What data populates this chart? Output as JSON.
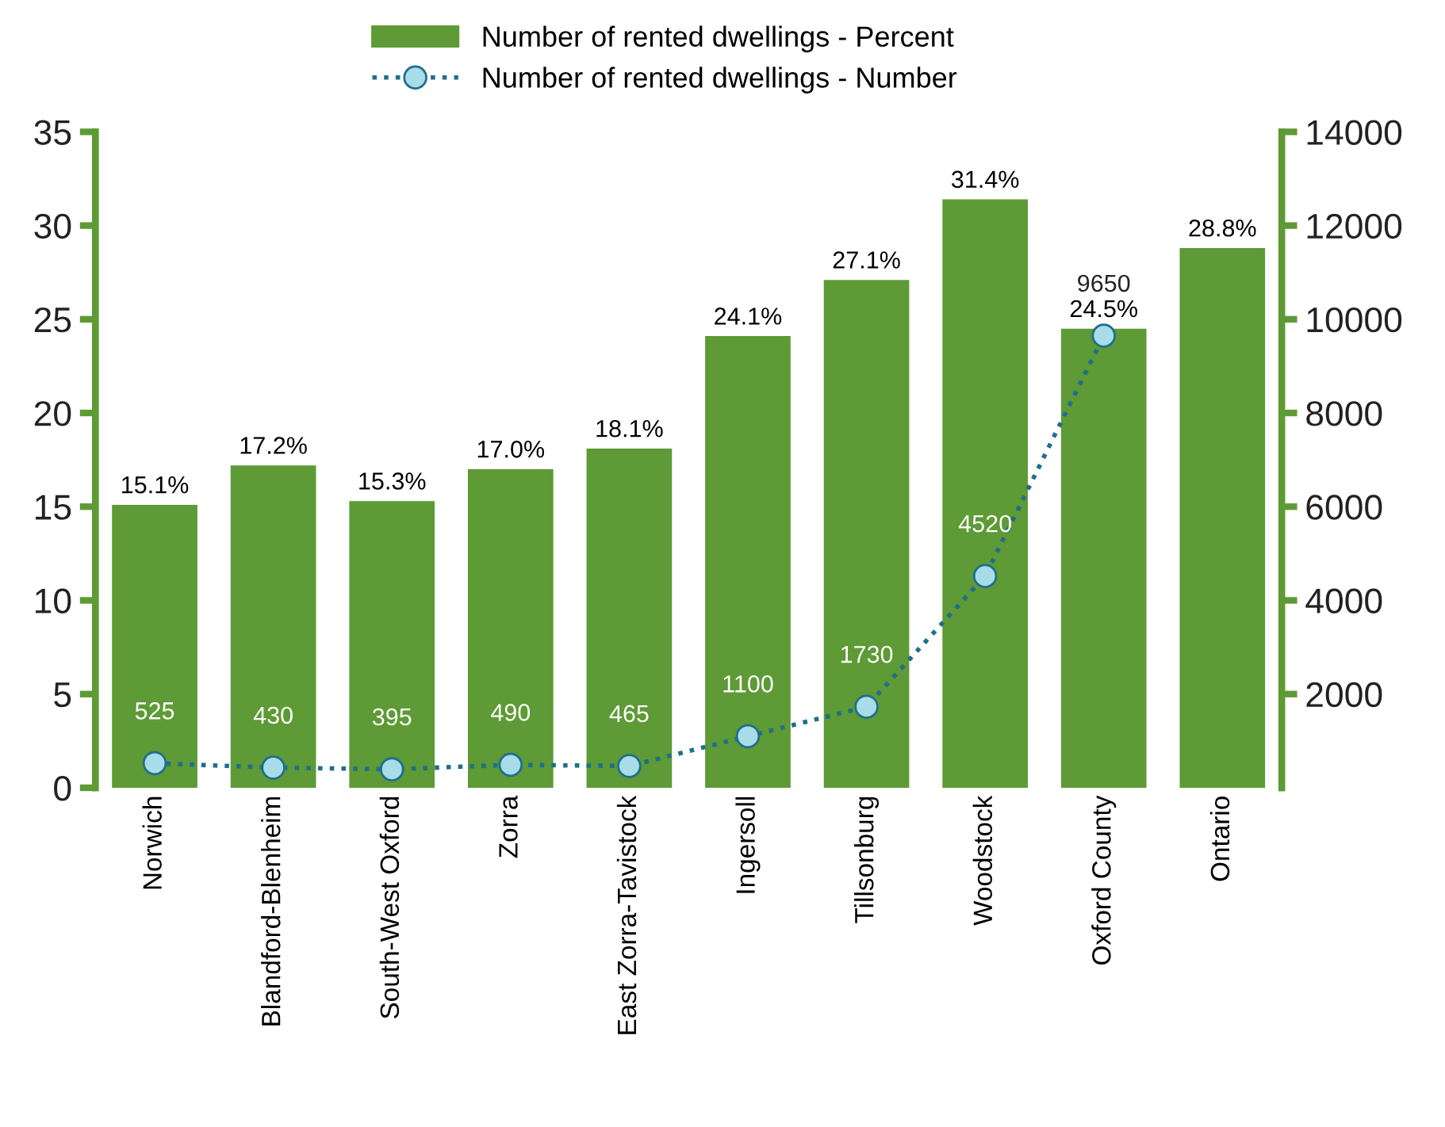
{
  "chart_data": {
    "type": "bar",
    "categories": [
      "Norwich",
      "Blandford-Blenheim",
      "South-West Oxford",
      "Zorra",
      "East Zorra-Tavistock",
      "Ingersoll",
      "Tillsonburg",
      "Woodstock",
      "Oxford County",
      "Ontario"
    ],
    "series": [
      {
        "name": "Number of rented dwellings - Percent",
        "color": "#5e9a35",
        "values": [
          15.1,
          17.2,
          15.3,
          17.0,
          18.1,
          24.1,
          27.1,
          31.4,
          24.5,
          28.8
        ],
        "value_labels": [
          "15.1%",
          "17.2%",
          "15.3%",
          "17.0%",
          "18.1%",
          "24.1%",
          "27.1%",
          "31.4%",
          "24.5%",
          "28.8%"
        ]
      },
      {
        "name": "Number of rented dwellings - Number",
        "type": "line",
        "axis": "y2",
        "color": "#1f6f8b",
        "marker": "circle",
        "line_style": "dotted",
        "values": [
          525,
          430,
          395,
          490,
          465,
          1100,
          1730,
          4520,
          9650,
          null
        ],
        "value_labels": [
          "525",
          "430",
          "395",
          "490",
          "465",
          "1100",
          "1730",
          "4520",
          "9650",
          null
        ]
      }
    ],
    "ylim": [
      0,
      35
    ],
    "yticks": [
      0,
      5,
      10,
      15,
      20,
      25,
      30,
      35
    ],
    "y2lim": [
      0,
      14000
    ],
    "y2ticks": [
      2000,
      4000,
      6000,
      8000,
      10000,
      12000,
      14000
    ],
    "grid": false,
    "legend": "top"
  }
}
